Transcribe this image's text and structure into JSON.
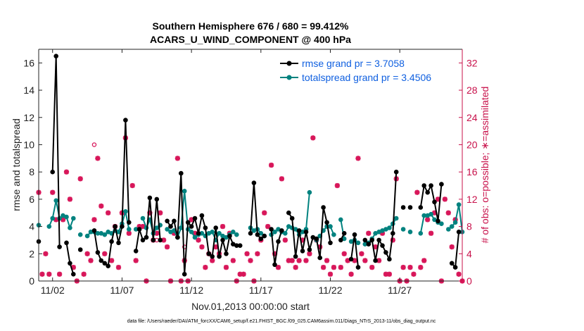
{
  "chart_data": {
    "type": "line",
    "title": "Southern Hemisphere 676 / 680 = 99.412%",
    "subtitle": "ACARS_U_WIND_COMPONENT @ 400 hPa",
    "xlabel": "Nov.01,2013 00:00:00 start",
    "ylabel": "rmse and totalspread",
    "y2label": "# of obs: o=possible; ∗=assimilated",
    "xlim": [
      0.5,
      31
    ],
    "ylim": [
      0,
      17
    ],
    "y2lim": [
      0,
      34
    ],
    "x_ticks": [
      1.5,
      6.5,
      11.5,
      16.5,
      21.5,
      26.5
    ],
    "x_tick_labels": [
      "11/02",
      "11/07",
      "11/12",
      "11/17",
      "11/22",
      "11/27"
    ],
    "y_ticks": [
      0,
      2,
      4,
      6,
      8,
      10,
      12,
      14,
      16
    ],
    "y_tick_labels": [
      "0",
      "2",
      "4",
      "6",
      "8",
      "10",
      "12",
      "14",
      "16"
    ],
    "y2_ticks": [
      0,
      4,
      8,
      12,
      16,
      20,
      24,
      28,
      32
    ],
    "y2_tick_labels": [
      "0",
      "4",
      "8",
      "12",
      "16",
      "20",
      "24",
      "28",
      "32"
    ],
    "legend": [
      "rmse grand pr = 3.7058",
      "totalspread grand pr = 3.4506"
    ],
    "legend_position": "top-right",
    "colors": {
      "rmse": "#000000",
      "spread": "#00827f",
      "obs": "#d8175a",
      "legend_text": "#1060e0",
      "axis": "#222222"
    },
    "series": [
      {
        "name": "rmse",
        "x": [
          0.5,
          0.75,
          1.0,
          1.25,
          1.5,
          1.75,
          2.0,
          2.25,
          2.5,
          2.75,
          3.0,
          3.25,
          3.5,
          3.75,
          4.0,
          4.25,
          4.5,
          4.75,
          5.0,
          5.25,
          5.5,
          5.75,
          6.0,
          6.25,
          6.5,
          6.75,
          7.0,
          7.25,
          7.5,
          7.75,
          8.0,
          8.25,
          8.5,
          8.75,
          9.0,
          9.25,
          9.5,
          9.75,
          10.0,
          10.25,
          10.5,
          10.75,
          11.0,
          11.25,
          11.5,
          11.75,
          12.0,
          12.25,
          12.5,
          12.75,
          13.0,
          13.25,
          13.5,
          13.75,
          14.0,
          14.25,
          14.5,
          14.75,
          15.0,
          15.25,
          15.5,
          15.75,
          16.0,
          16.25,
          16.5,
          16.75,
          17.0,
          17.25,
          17.5,
          17.75,
          18.0,
          18.25,
          18.5,
          18.75,
          19.0,
          19.25,
          19.5,
          19.75,
          20.0,
          20.25,
          20.5,
          20.75,
          21.0,
          21.25,
          21.5,
          21.75,
          22.0,
          22.25,
          22.5,
          22.75,
          23.0,
          23.25,
          23.5,
          23.75,
          24.0,
          24.25,
          24.5,
          24.75,
          25.0,
          25.25,
          25.5,
          25.75,
          26.0,
          26.25,
          26.5,
          26.75,
          27.0,
          27.25,
          27.5,
          27.75,
          28.0,
          28.25,
          28.5,
          28.75,
          29.0,
          29.25,
          29.5,
          29.75,
          30.0,
          30.25,
          30.5,
          30.75,
          31.0
        ],
        "values": [
          2.9,
          null,
          null,
          null,
          8.0,
          16.5,
          2.5,
          null,
          2.8,
          1.3,
          0.5,
          null,
          2.3,
          null,
          null,
          null,
          3.7,
          2.1,
          1.5,
          1.3,
          1.1,
          2.9,
          4.0,
          2.8,
          4.0,
          11.8,
          4.3,
          null,
          2.2,
          3.8,
          3.0,
          3.2,
          6.1,
          3.0,
          6.0,
          3.0,
          null,
          4.4,
          4.0,
          4.4,
          3.2,
          7.9,
          0.5,
          4.3,
          4.0,
          4.6,
          3.5,
          4.8,
          3.9,
          2.0,
          1.8,
          3.9,
          1.8,
          3.0,
          2.0,
          3.3,
          2.7,
          2.6,
          2.6,
          null,
          null,
          3.5,
          7.2,
          3.4,
          3.1,
          3.3,
          null,
          3.8,
          1.2,
          2.9,
          3.7,
          null,
          5.0,
          4.6,
          1.8,
          3.7,
          2.2,
          3.6,
          2.3,
          3.2,
          3.1,
          1.7,
          5.4,
          4.3,
          2.8,
          null,
          null,
          3.0,
          3.5,
          null,
          1.6,
          3.4,
          1.0,
          null,
          3.0,
          2.7,
          3.0,
          1.5,
          3.0,
          2.6,
          2.1,
          1.6,
          3.5,
          8.0,
          null,
          5.4,
          null,
          5.4,
          null,
          null,
          5.4,
          7.0,
          6.5,
          7.0,
          5.8,
          4.4,
          7.1,
          null,
          null,
          1.3,
          1.0,
          3.6,
          null
        ]
      },
      {
        "name": "totalspread",
        "x": [
          0.5,
          0.75,
          1.0,
          1.25,
          1.5,
          1.75,
          2.0,
          2.25,
          2.5,
          2.75,
          3.0,
          3.25,
          3.5,
          3.75,
          4.0,
          4.25,
          4.5,
          4.75,
          5.0,
          5.25,
          5.5,
          5.75,
          6.0,
          6.25,
          6.5,
          6.75,
          7.0,
          7.25,
          7.5,
          7.75,
          8.0,
          8.25,
          8.5,
          8.75,
          9.0,
          9.25,
          9.5,
          9.75,
          10.0,
          10.25,
          10.5,
          10.75,
          11.0,
          11.25,
          11.5,
          11.75,
          12.0,
          12.25,
          12.5,
          12.75,
          13.0,
          13.25,
          13.5,
          13.75,
          14.0,
          14.25,
          14.5,
          14.75,
          15.0,
          15.25,
          15.5,
          15.75,
          16.0,
          16.25,
          16.5,
          16.75,
          17.0,
          17.25,
          17.5,
          17.75,
          18.0,
          18.25,
          18.5,
          18.75,
          19.0,
          19.25,
          19.5,
          19.75,
          20.0,
          20.25,
          20.5,
          20.75,
          21.0,
          21.25,
          21.5,
          21.75,
          22.0,
          22.25,
          22.5,
          22.75,
          23.0,
          23.25,
          23.5,
          23.75,
          24.0,
          24.25,
          24.5,
          24.75,
          25.0,
          25.25,
          25.5,
          25.75,
          26.0,
          26.25,
          26.5,
          26.75,
          27.0,
          27.25,
          27.5,
          27.75,
          28.0,
          28.25,
          28.5,
          28.75,
          29.0,
          29.25,
          29.5,
          29.75,
          30.0,
          30.25,
          30.5,
          30.75,
          31.0
        ],
        "values": [
          4.1,
          null,
          null,
          4.0,
          4.6,
          5.9,
          4.6,
          4.8,
          4.7,
          3.9,
          4.6,
          null,
          3.4,
          null,
          3.3,
          3.6,
          3.6,
          3.5,
          3.5,
          3.4,
          3.6,
          3.5,
          3.7,
          3.6,
          4.2,
          5.1,
          3.8,
          null,
          3.8,
          null,
          4.6,
          3.9,
          4.5,
          3.5,
          3.9,
          4.1,
          null,
          3.8,
          3.6,
          3.7,
          3.2,
          3.9,
          6.6,
          3.8,
          3.6,
          3.2,
          3.4,
          3.5,
          3.3,
          3.5,
          3.6,
          3.0,
          3.5,
          3.3,
          3.2,
          3.4,
          3.6,
          3.4,
          null,
          null,
          null,
          3.9,
          3.7,
          3.8,
          3.5,
          3.3,
          null,
          3.4,
          3.6,
          3.8,
          3.6,
          3.5,
          4.0,
          3.9,
          3.8,
          3.4,
          3.6,
          3.8,
          6.5,
          null,
          3.0,
          3.3,
          3.7,
          4.0,
          4.0,
          3.4,
          null,
          4.5,
          3.1,
          null,
          2.9,
          3.0,
          2.8,
          null,
          2.7,
          2.8,
          3.1,
          3.5,
          3.6,
          3.7,
          3.8,
          3.9,
          4.2,
          4.6,
          null,
          3.8,
          null,
          3.6,
          null,
          null,
          3.5,
          4.8,
          4.8,
          4.9,
          4.5,
          4.3,
          4.2,
          null,
          3.8,
          4.0,
          4.3,
          5.6,
          3.6
        ]
      }
    ],
    "obs_assimilated": {
      "x": [
        0.5,
        0.75,
        1.0,
        1.25,
        1.5,
        1.75,
        2.0,
        2.25,
        2.5,
        2.75,
        3.0,
        3.25,
        3.5,
        3.75,
        4.0,
        4.25,
        4.5,
        4.75,
        5.0,
        5.25,
        5.5,
        5.75,
        6.0,
        6.25,
        6.5,
        6.75,
        7.0,
        7.25,
        7.5,
        7.75,
        8.0,
        8.25,
        8.5,
        8.75,
        9.0,
        9.25,
        9.5,
        9.75,
        10.0,
        10.25,
        10.5,
        10.75,
        11.0,
        11.25,
        11.5,
        11.75,
        12.0,
        12.25,
        12.5,
        12.75,
        13.0,
        13.25,
        13.5,
        13.75,
        14.0,
        14.25,
        14.5,
        14.75,
        15.0,
        15.25,
        15.5,
        15.75,
        16.0,
        16.25,
        16.5,
        16.75,
        17.0,
        17.25,
        17.5,
        17.75,
        18.0,
        18.25,
        18.5,
        18.75,
        19.0,
        19.25,
        19.5,
        19.75,
        20.0,
        20.25,
        20.5,
        20.75,
        21.0,
        21.25,
        21.5,
        21.75,
        22.0,
        22.25,
        22.5,
        22.75,
        23.0,
        23.25,
        23.5,
        23.75,
        24.0,
        24.25,
        24.5,
        24.75,
        25.0,
        25.25,
        25.5,
        25.75,
        26.0,
        26.25,
        26.5,
        26.75,
        27.0,
        27.25,
        27.5,
        27.75,
        28.0,
        28.25,
        28.5,
        28.75,
        29.0,
        29.25,
        29.5,
        29.75,
        30.0,
        30.25,
        30.5,
        30.75,
        31.0
      ],
      "values": [
        13,
        1,
        4,
        1,
        13,
        9,
        1,
        9,
        16,
        12,
        2,
        0,
        15,
        1,
        4,
        3,
        9,
        18,
        11,
        4,
        10,
        3,
        8,
        2,
        10,
        21,
        7,
        14,
        3,
        8,
        8,
        0,
        10,
        6,
        7,
        10,
        6,
        5,
        0,
        7,
        18,
        0,
        3,
        0,
        9,
        7,
        6,
        5,
        2,
        4,
        3,
        5,
        4,
        8,
        2,
        7,
        3,
        0,
        1,
        1,
        4,
        3,
        0,
        4,
        6,
        10,
        8,
        17,
        4,
        2,
        15,
        6,
        3,
        3,
        2,
        3,
        6,
        3,
        4,
        21,
        6,
        5,
        2,
        3,
        1,
        2,
        14,
        2,
        4,
        3,
        1,
        3,
        18,
        4,
        3,
        7,
        2,
        5,
        3,
        7,
        1,
        1,
        6,
        15,
        0,
        2,
        0,
        2,
        1,
        13,
        2,
        3,
        9,
        7,
        10,
        12,
        0,
        12,
        10,
        5,
        9,
        1,
        0
      ]
    },
    "obs_possible": {
      "x": [
        4.5,
        9.0,
        11.0,
        20.0
      ],
      "values": [
        20,
        6,
        5,
        4
      ]
    }
  },
  "footer": "data file: /Users/raeder/DAI/ATM_forcXX/CAM6_setup/f.e21.FHIST_BGC.f09_025.CAM6assim.011/Diags_NTrS_2013-11/obs_diag_output.nc"
}
